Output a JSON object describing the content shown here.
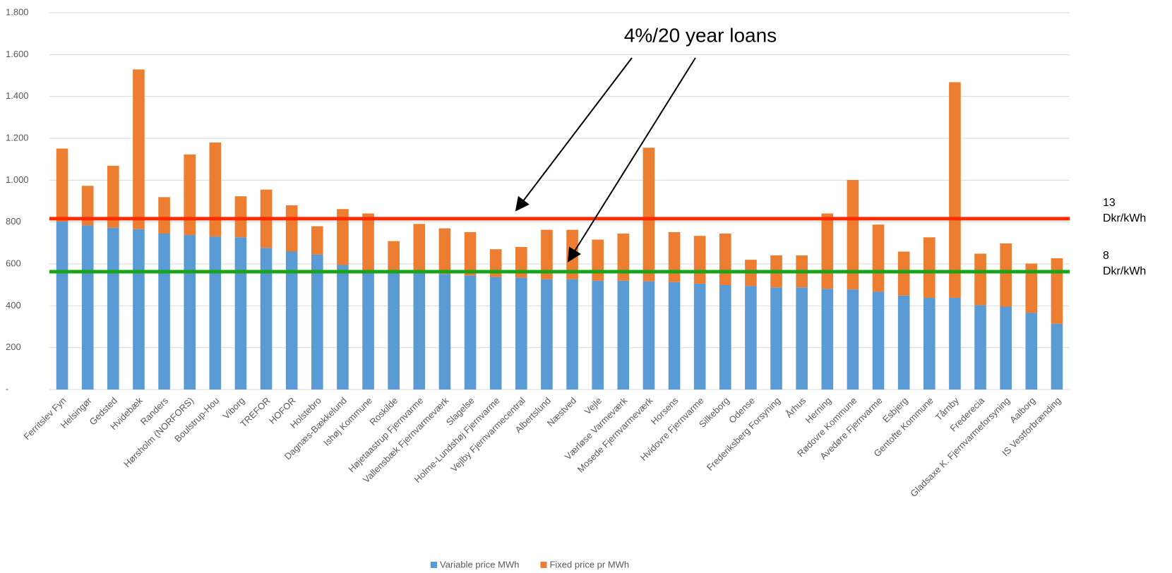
{
  "chart_data": {
    "type": "stacked_bar",
    "categories": [
      "Ferritslev Fyn",
      "Helsingør",
      "Gedsted",
      "Hvidebæk",
      "Randers",
      "Hørsholm (NORFORS)",
      "Boulstrup-Hou",
      "Viborg",
      "TREFOR",
      "HOFOR",
      "Holstebro",
      "Dagnæs-Bækkelund",
      "Ishøj Kommune",
      "Roskilde",
      "Højetaastrup Fjernvarme",
      "Vallensbæk Fjernvarmeværk",
      "Slagelse",
      "Holme-Lundshøj Fjernvarme",
      "Vejlby Fjernvarmecentral",
      "Albertslund",
      "Næstved",
      "Vejle",
      "Værløse Varmeværk",
      "Mosede Fjernvarmeværk",
      "Horsens",
      "Hvidovre Fjernvarme",
      "Silkeborg",
      "Odense",
      "Frederiksberg Forsyning",
      "Århus",
      "Herning",
      "Rødovre Kommune",
      "Avedøre Fjernvarme",
      "Esbjerg",
      "Gentofte Kommune",
      "Tårnby",
      "Frederecia",
      "Gladsaxe K. Fjernvarmeforsyning",
      "Aalborg",
      "IS Vestforbrænding"
    ],
    "series": [
      {
        "name": "Variable price MWh",
        "color": "#5b9bd5",
        "values": [
          802,
          784,
          773,
          766,
          745,
          738,
          731,
          727,
          677,
          659,
          645,
          595,
          570,
          560,
          560,
          552,
          545,
          538,
          535,
          527,
          527,
          520,
          520,
          517,
          513,
          506,
          499,
          495,
          488,
          488,
          481,
          478,
          467,
          449,
          438,
          438,
          403,
          396,
          367,
          314
        ]
      },
      {
        "name": "Fixed price pr MWh",
        "color": "#ed7d31",
        "values": [
          349,
          189,
          296,
          763,
          174,
          385,
          449,
          196,
          278,
          221,
          135,
          267,
          271,
          149,
          231,
          218,
          207,
          132,
          146,
          236,
          236,
          196,
          225,
          638,
          239,
          228,
          246,
          125,
          153,
          153,
          360,
          523,
          321,
          210,
          289,
          1030,
          246,
          302,
          235,
          313
        ]
      }
    ],
    "ylim": [
      0,
      1800
    ],
    "yticks": [
      {
        "value": 0,
        "label": "-"
      },
      200,
      400,
      600,
      800,
      {
        "value": 1000,
        "label": "1.000"
      },
      {
        "value": 1200,
        "label": "1.200"
      },
      {
        "value": 1400,
        "label": "1.400"
      },
      {
        "value": 1600,
        "label": "1.600"
      },
      {
        "value": 1800,
        "label": "1.800"
      }
    ],
    "grid": true,
    "legend": "bottom",
    "reference_lines": [
      {
        "value": 816,
        "color": "#ff2a00",
        "label": [
          "13",
          "Dkr/kWh"
        ]
      },
      {
        "value": 563,
        "color": "#19a319",
        "label": [
          "8",
          "Dkr/kWh"
        ]
      }
    ],
    "annotation": "4%/20 year loans"
  }
}
